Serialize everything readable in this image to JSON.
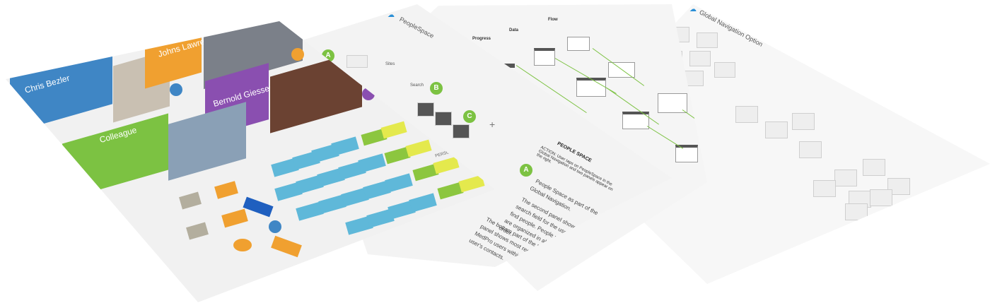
{
  "sheet_people_tiles": {
    "tiles": [
      {
        "label": "Chris Bezler",
        "color": "#3f86c5"
      },
      {
        "label": "Johns Lawrence",
        "color": "#f0a030"
      },
      {
        "label": "Bernold Giessen",
        "color": "#8a4fb0"
      },
      {
        "label": "Colleague",
        "color": "#7cc242"
      }
    ]
  },
  "sheet_people_space": {
    "title": "PeopleSpace",
    "nav_items": [
      "Sites",
      "Search"
    ],
    "personas_label": "PERSONAS",
    "people_space_heading": "PEOPLE SPACE",
    "action_text": "ACTION: User taps on PeopleSpace in the Global Navigation and two panels appear on the right.",
    "description_lines": [
      "People Space as part of the",
      "Global Navigation.",
      "The second panel shows a",
      "search field for the user to",
      "find people. People results",
      "are organized in alphabetical",
      "order.",
      "The bottom part of the third",
      "panel shows most recent",
      "MedPro users within the",
      "user's contacts."
    ]
  },
  "sheet_flow": {
    "columns": [
      "Progress",
      "Data",
      "Flow"
    ]
  },
  "sheet_global_nav": {
    "title": "Global Navigation Option"
  },
  "colors": {
    "accent_blue": "#3f86c5",
    "accent_orange": "#f0a030",
    "accent_purple": "#8a4fb0",
    "accent_green": "#7cc242",
    "sticky_blue": "#5fb8d9",
    "sticky_yellow": "#e4e94d"
  },
  "icons": [
    "cloud-logo-icon",
    "person-icon",
    "plus-icon",
    "arrow-icon"
  ]
}
